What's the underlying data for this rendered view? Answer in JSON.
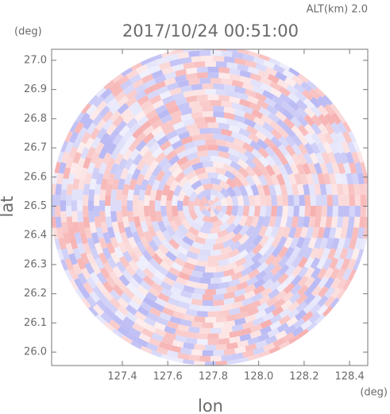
{
  "chart_data": {
    "type": "radar-ppi",
    "title": "2017/10/24 00:51:00",
    "subtitle": "ALT(km) 2.0",
    "x_label": "lon",
    "y_label": "lat",
    "x_unit": "(deg)",
    "y_unit": "(deg)",
    "xlim": [
      127.089,
      128.48
    ],
    "ylim": [
      25.954,
      27.038
    ],
    "xticks": [
      127.4,
      127.6,
      127.8,
      {
        "value": 128,
        "label": "128.0"
      },
      128.2,
      128.4
    ],
    "yticks": [
      {
        "value": 26,
        "label": "26.0"
      },
      26.1,
      26.2,
      26.3,
      26.4,
      26.5,
      26.6,
      26.7,
      26.8,
      26.9,
      {
        "value": 27,
        "label": "27.0"
      }
    ]
  }
}
